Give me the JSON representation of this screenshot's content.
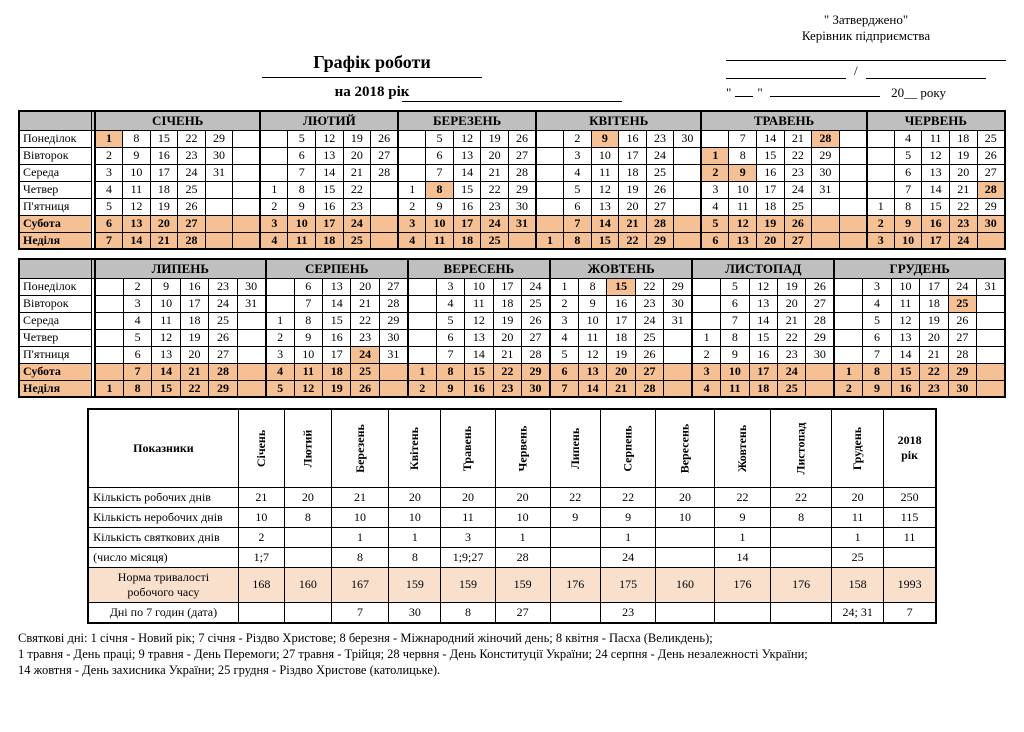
{
  "approval": {
    "quoted": "\" Затверджено\"",
    "manager": "Керівник підприємства",
    "year_suffix": "20__ року"
  },
  "title": {
    "main": "Графік роботи",
    "year": "на 2018 рік"
  },
  "weekdays": [
    "Понеділок",
    "Вівторок",
    "Середа",
    "Четвер",
    "П'ятниця",
    "Субота",
    "Неділя"
  ],
  "months_top": [
    {
      "name": "СІЧЕНЬ",
      "cols": 6,
      "start": 1,
      "days": 31,
      "gapCol": 1,
      "hl": [
        1
      ]
    },
    {
      "name": "ЛЮТИЙ",
      "cols": 5,
      "start": 4,
      "days": 28,
      "gapCol": 0,
      "hl": []
    },
    {
      "name": "БЕРЕЗЕНЬ",
      "cols": 5,
      "start": 4,
      "days": 31,
      "gapCol": 0,
      "hl": [
        8
      ]
    },
    {
      "name": "КВІТЕНЬ",
      "cols": 6,
      "start": 7,
      "days": 30,
      "gapCol": 5,
      "hl": [
        1,
        8,
        9
      ]
    },
    {
      "name": "ТРАВЕНЬ",
      "cols": 6,
      "start": 2,
      "days": 31,
      "gapCol": 5,
      "hl": [
        1,
        2,
        9,
        28
      ]
    },
    {
      "name": "ЧЕРВЕНЬ",
      "cols": 5,
      "start": 5,
      "days": 30,
      "gapCol": 0,
      "hl": [
        28
      ]
    }
  ],
  "months_bot": [
    {
      "name": "ЛИПЕНЬ",
      "cols": 6,
      "start": 7,
      "days": 31,
      "gapCol": 0,
      "hl": []
    },
    {
      "name": "СЕРПЕНЬ",
      "cols": 5,
      "start": 3,
      "days": 31,
      "gapCol": 0,
      "hl": [
        24
      ]
    },
    {
      "name": "ВЕРЕСЕНЬ",
      "cols": 5,
      "start": 6,
      "days": 30,
      "gapCol": 0,
      "hl": []
    },
    {
      "name": "ЖОВТЕНЬ",
      "cols": 5,
      "start": 1,
      "days": 31,
      "gapCol": 0,
      "hl": [
        15
      ]
    },
    {
      "name": "ЛИСТОПАД",
      "cols": 5,
      "start": 4,
      "days": 30,
      "gapCol": 0,
      "hl": []
    },
    {
      "name": "ГРУДЕНЬ",
      "cols": 6,
      "start": 6,
      "days": 31,
      "gapCol": 5,
      "hl": [
        25
      ]
    }
  ],
  "summary": {
    "head_indicator": "Показники",
    "month_cols": [
      "Січень",
      "Лютий",
      "Березень",
      "Квітень",
      "Травень",
      "Червень",
      "Липень",
      "Серпень",
      "Вересень",
      "Жовтень",
      "Листопад",
      "Грудень"
    ],
    "year_col": "2018 рік",
    "rows": [
      {
        "label": "Кількість робочих днів",
        "vals": [
          "21",
          "20",
          "21",
          "20",
          "20",
          "20",
          "22",
          "22",
          "20",
          "22",
          "22",
          "20",
          "250"
        ]
      },
      {
        "label": "Кількість неробочих днів",
        "vals": [
          "10",
          "8",
          "10",
          "10",
          "11",
          "10",
          "9",
          "9",
          "10",
          "9",
          "8",
          "11",
          "115"
        ]
      },
      {
        "label": "Кількість святкових днів",
        "vals": [
          "2",
          "",
          "1",
          "1",
          "3",
          "1",
          "",
          "1",
          "",
          "1",
          "",
          "1",
          "11"
        ]
      },
      {
        "label": "(число місяця)",
        "vals": [
          "1;7",
          "",
          "8",
          "8",
          "1;9;27",
          "28",
          "",
          "24",
          "",
          "14",
          "",
          "25",
          ""
        ]
      }
    ],
    "norm_row": {
      "label": "Норма тривалості робочого часу",
      "vals": [
        "168",
        "160",
        "167",
        "159",
        "159",
        "159",
        "176",
        "175",
        "160",
        "176",
        "176",
        "158",
        "1993"
      ]
    },
    "seven_row": {
      "label": "Дні по 7 годин (дата)",
      "vals": [
        "",
        "",
        "7",
        "30",
        "8",
        "27",
        "",
        "23",
        "",
        "",
        "",
        "24; 31",
        "7"
      ]
    }
  },
  "footnote1": "Святкові дні: 1 січня - Новий рік; 7 січня - Різдво Христове; 8 березня - Міжнародний жіночий день;  8 квітня - Пасха (Великдень);",
  "footnote2": "1 травня - День праці; 9 травня - День Перемоги; 27 травня - Трійця; 28 червня - День Конституції України; 24 серпня - День незалежності України;",
  "footnote3": "14 жовтня - День захисника України; 25 грудня - Різдво Христове (католицьке)."
}
